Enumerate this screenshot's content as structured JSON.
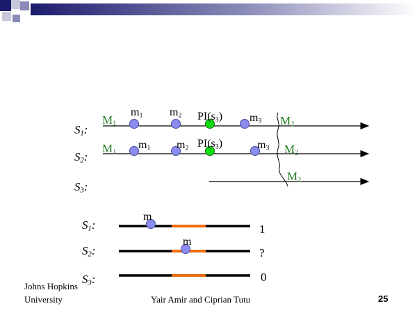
{
  "colors": {
    "header_bar": "#1c1c6e",
    "square_dark": "#1c1c6e",
    "square_mid": "#8a8ab8",
    "square_light": "#c8c8dc",
    "marker_blue": "#8c8cf0",
    "marker_green": "#11dd11",
    "marker_orange": "#ff6a00",
    "label_green": "#1f7a1f"
  },
  "diagram_top": {
    "rows": [
      {
        "server": "S",
        "server_sub": "1",
        "colon": ":",
        "labels": {
          "M1": "M",
          "M1_sub": "1",
          "m1": "m",
          "m1_sub": "1",
          "m2": "m",
          "m2_sub": "2",
          "pi": "PI(s",
          "pi_sub": "3",
          "pi_end": ")",
          "m3": "m",
          "m3_sub": "3",
          "M2": "M",
          "M2_sub": "2"
        }
      },
      {
        "server": "S",
        "server_sub": "2",
        "colon": ":",
        "labels": {
          "M1": "M",
          "M1_sub": "1",
          "m1": "m",
          "m1_sub": "1",
          "m2": "m",
          "m2_sub": "2",
          "pi": "PI(s",
          "pi_sub": "3",
          "pi_end": ")",
          "m3": "m",
          "m3_sub": "3",
          "M2": "M",
          "M2_sub": "2"
        }
      },
      {
        "server": "S",
        "server_sub": "3",
        "colon": ":",
        "labels": {
          "M2": "M",
          "M2_sub": "2"
        }
      }
    ]
  },
  "diagram_bottom": {
    "rows": [
      {
        "server": "S",
        "server_sub": "1",
        "colon": ":",
        "marker": "m",
        "result": "1"
      },
      {
        "server": "S",
        "server_sub": "2",
        "colon": ":",
        "marker": "m",
        "result": "?"
      },
      {
        "server": "S",
        "server_sub": "3",
        "colon": ":",
        "result": "0"
      }
    ]
  },
  "footer": {
    "institution_line1": "Johns Hopkins",
    "institution_line2": "University",
    "authors": "Yair Amir and Ciprian Tutu",
    "page_number": "25"
  }
}
